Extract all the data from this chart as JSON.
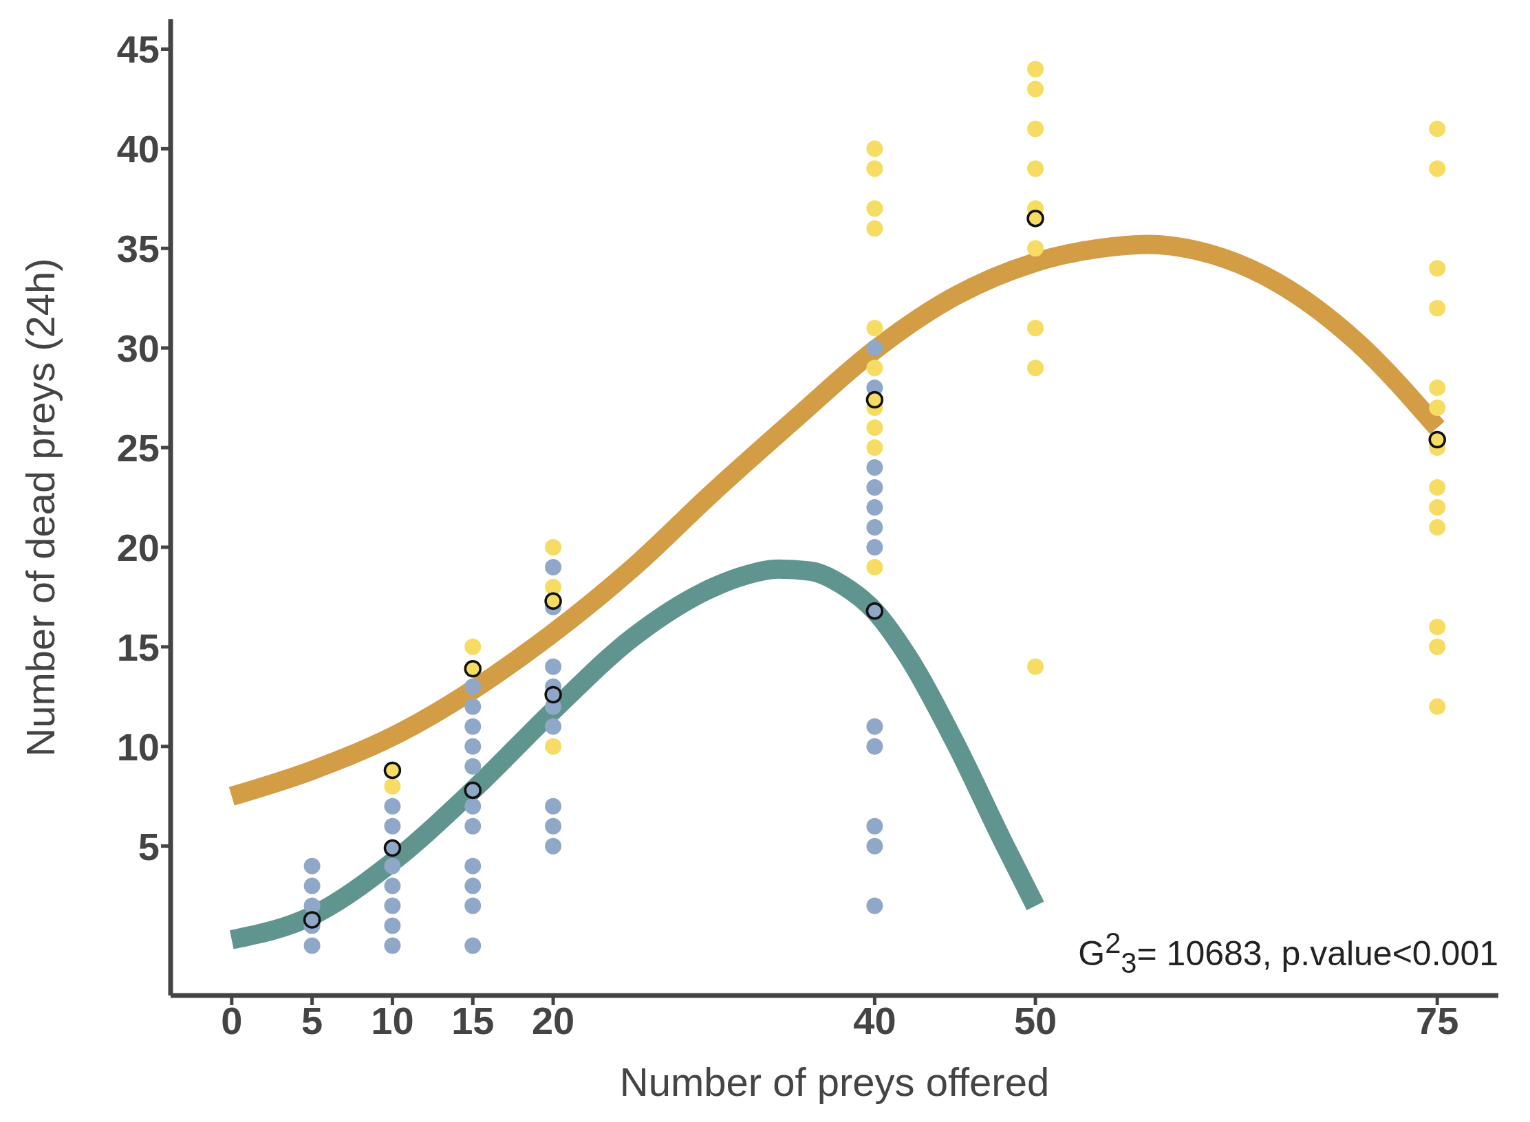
{
  "chart_data": {
    "type": "scatter",
    "xlabel": "Number of preys offered",
    "ylabel": "Number of dead preys (24h)",
    "xlim": [
      -3.8,
      78.8
    ],
    "xticks": [
      0,
      5,
      10,
      15,
      20,
      40,
      50,
      75
    ],
    "ylim": [
      -2.5,
      46.5
    ],
    "yticks": [
      5,
      10,
      15,
      20,
      25,
      30,
      35,
      40,
      45
    ],
    "grid": false,
    "legend": false,
    "annotations": [
      "G$^{2}$$_{3}$= 10683, p.value<0.001"
    ],
    "series": [
      {
        "color": "#f6dc63",
        "x": [
          10,
          15,
          20,
          20,
          20,
          40,
          40,
          40,
          40,
          40,
          40,
          40,
          40,
          40,
          40,
          50,
          50,
          50,
          50,
          50,
          50,
          50,
          50,
          50,
          75,
          75,
          75,
          75,
          75,
          75,
          75,
          75,
          75,
          75,
          75,
          75,
          75
        ],
        "values": [
          8,
          15,
          10,
          18,
          20,
          40,
          39,
          37,
          36,
          31,
          29,
          27,
          26,
          25,
          19,
          44,
          43,
          41,
          39,
          37,
          35,
          31,
          29,
          14,
          41,
          39,
          34,
          32,
          28,
          27,
          23,
          22,
          21,
          16,
          15,
          12,
          25
        ]
      },
      {
        "color": "#90a8c8",
        "x": [
          5,
          5,
          5,
          5,
          5,
          10,
          10,
          10,
          10,
          10,
          10,
          10,
          15,
          15,
          15,
          15,
          15,
          15,
          15,
          15,
          15,
          15,
          15,
          20,
          20,
          20,
          20,
          20,
          20,
          20,
          20,
          20,
          40,
          40,
          40,
          40,
          40,
          40,
          40,
          40,
          40,
          40,
          40,
          40
        ],
        "values": [
          0,
          1,
          2,
          3,
          4,
          0,
          1,
          2,
          3,
          4,
          6,
          7,
          0,
          2,
          3,
          4,
          6,
          7,
          9,
          10,
          11,
          12,
          13,
          5,
          6,
          7,
          11,
          12,
          13,
          14,
          17,
          19,
          30,
          28,
          24,
          23,
          22,
          21,
          20,
          11,
          10,
          6,
          5,
          2
        ]
      },
      {
        "type": "line",
        "color": "#d39d45",
        "x": [
          0,
          5,
          10,
          20,
          25,
          30,
          35,
          40,
          45,
          50,
          55,
          57,
          60,
          65,
          70,
          75
        ],
        "values": [
          7.5,
          8.8,
          10.5,
          15.7,
          19,
          22.8,
          26.4,
          29.9,
          32.6,
          34.3,
          35.1,
          35.2,
          34.9,
          33.3,
          30.3,
          26
        ]
      },
      {
        "type": "line",
        "color": "#5f958e",
        "x": [
          0,
          5,
          10,
          15,
          20,
          25,
          30,
          32,
          34,
          36,
          38,
          40,
          42,
          45,
          48,
          50
        ],
        "values": [
          0.3,
          1.5,
          4.2,
          7.8,
          11.8,
          15.5,
          18,
          18.6,
          18.9,
          18.8,
          18.1,
          16.8,
          14.6,
          10.2,
          5.2,
          2
        ]
      },
      {
        "marker": "circle",
        "color": "#f6dc63",
        "x": [
          10,
          15,
          20,
          40,
          50,
          75
        ],
        "values": [
          8.8,
          13.9,
          17.3,
          27.4,
          36.5,
          25.4
        ]
      },
      {
        "marker": "circle",
        "color": "#90a8c8",
        "x": [
          5,
          10,
          15,
          20,
          40
        ],
        "values": [
          1.3,
          4.9,
          7.8,
          12.6,
          16.8
        ]
      }
    ]
  }
}
